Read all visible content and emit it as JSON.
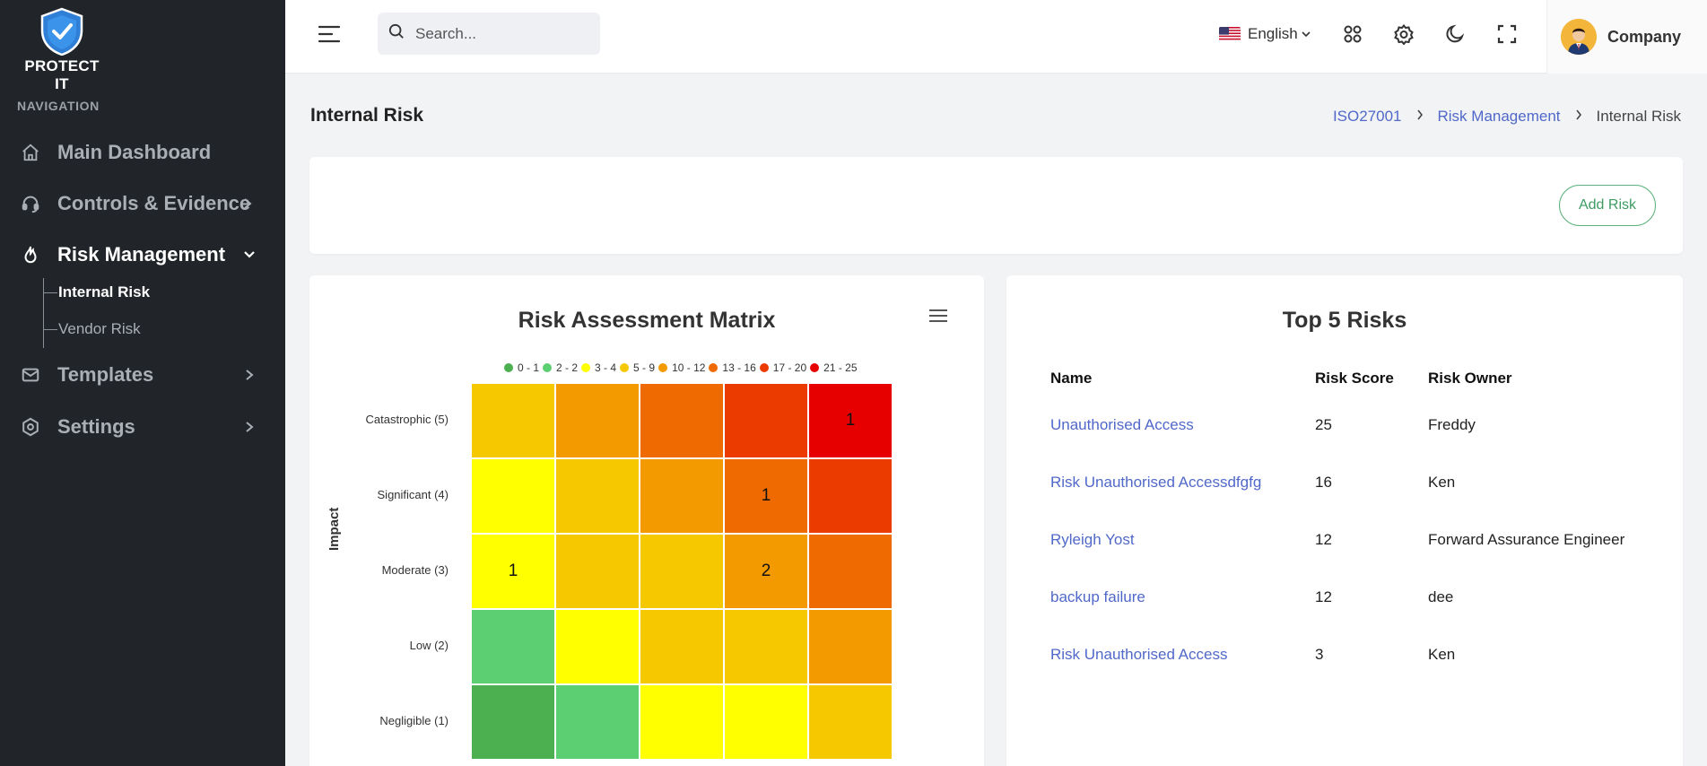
{
  "app": {
    "logo_text": "PROTECT IT"
  },
  "sidebar": {
    "heading": "NAVIGATION",
    "items": [
      {
        "label": "Main Dashboard",
        "icon": "home-icon"
      },
      {
        "label": "Controls & Evidence",
        "icon": "headset-icon"
      },
      {
        "label": "Risk Management",
        "icon": "fire-icon"
      },
      {
        "label": "Templates",
        "icon": "mail-icon"
      },
      {
        "label": "Settings",
        "icon": "settings-icon"
      }
    ],
    "subitems": [
      {
        "label": "Internal Risk",
        "active": true
      },
      {
        "label": "Vendor Risk",
        "active": false
      }
    ]
  },
  "topbar": {
    "search_placeholder": "Search...",
    "language": "English",
    "user_name": "Company"
  },
  "page": {
    "title": "Internal Risk",
    "breadcrumb": [
      "ISO27001",
      "Risk Management",
      "Internal Risk"
    ],
    "add_risk_label": "Add Risk"
  },
  "matrix": {
    "title": "Risk Assessment Matrix",
    "y_axis_title": "Impact",
    "legend": [
      {
        "label": "0 - 1",
        "color": "#4caf50"
      },
      {
        "label": "2 - 2",
        "color": "#5ccf73"
      },
      {
        "label": "3 - 4",
        "color": "#ffff00"
      },
      {
        "label": "5 - 9",
        "color": "#f5c800"
      },
      {
        "label": "10 - 12",
        "color": "#f29a00"
      },
      {
        "label": "13 - 16",
        "color": "#ef6a00"
      },
      {
        "label": "17 - 20",
        "color": "#ec3b00"
      },
      {
        "label": "21 - 25",
        "color": "#e60000"
      }
    ],
    "impact_levels": [
      "Catastrophic (5)",
      "Significant (4)",
      "Moderate (3)",
      "Low (2)",
      "Negligible (1)"
    ],
    "cells": [
      [
        {
          "color": "#f5c800",
          "count": ""
        },
        {
          "color": "#f29a00",
          "count": ""
        },
        {
          "color": "#ef6a00",
          "count": ""
        },
        {
          "color": "#ec3b00",
          "count": ""
        },
        {
          "color": "#e60000",
          "count": "1"
        }
      ],
      [
        {
          "color": "#ffff00",
          "count": ""
        },
        {
          "color": "#f5c800",
          "count": ""
        },
        {
          "color": "#f29a00",
          "count": ""
        },
        {
          "color": "#ef6a00",
          "count": "1"
        },
        {
          "color": "#ec3b00",
          "count": ""
        }
      ],
      [
        {
          "color": "#ffff00",
          "count": "1"
        },
        {
          "color": "#f5c800",
          "count": ""
        },
        {
          "color": "#f5c800",
          "count": ""
        },
        {
          "color": "#f29a00",
          "count": "2"
        },
        {
          "color": "#ef6a00",
          "count": ""
        }
      ],
      [
        {
          "color": "#5ccf73",
          "count": ""
        },
        {
          "color": "#ffff00",
          "count": ""
        },
        {
          "color": "#f5c800",
          "count": ""
        },
        {
          "color": "#f5c800",
          "count": ""
        },
        {
          "color": "#f29a00",
          "count": ""
        }
      ],
      [
        {
          "color": "#4caf50",
          "count": ""
        },
        {
          "color": "#5ccf73",
          "count": ""
        },
        {
          "color": "#ffff00",
          "count": ""
        },
        {
          "color": "#ffff00",
          "count": ""
        },
        {
          "color": "#f5c800",
          "count": ""
        }
      ]
    ]
  },
  "top_risks": {
    "title": "Top 5 Risks",
    "columns": [
      "Name",
      "Risk Score",
      "Risk Owner"
    ],
    "rows": [
      {
        "name": "Unauthorised Access",
        "score": "25",
        "owner": "Freddy"
      },
      {
        "name": "Risk Unauthorised Accessdfgfg",
        "score": "16",
        "owner": "Ken"
      },
      {
        "name": "Ryleigh Yost",
        "score": "12",
        "owner": "Forward Assurance Engineer"
      },
      {
        "name": "backup failure",
        "score": "12",
        "owner": "dee"
      },
      {
        "name": "Risk Unauthorised Access",
        "score": "3",
        "owner": "Ken"
      }
    ]
  },
  "colors": {
    "sidebar_bg": "#212529",
    "link": "#5068c9",
    "accent_green": "#3e9c62"
  }
}
